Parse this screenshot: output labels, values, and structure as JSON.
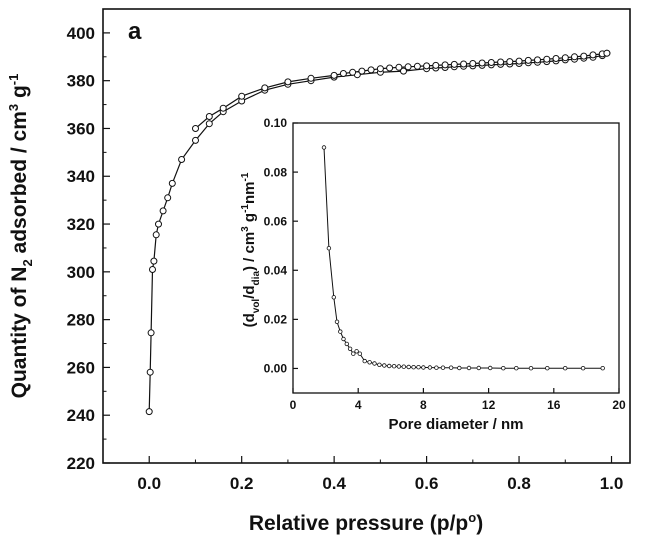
{
  "chart_data": [
    {
      "type": "scatter",
      "panel_label": "a",
      "xlabel": "Relative pressure (p/p",
      "xlabel_sup": "o",
      "xlabel_end": ")",
      "ylabel_main": "Quantity of N",
      "ylabel_sub": "2",
      "ylabel_mid": " adsorbed / cm",
      "ylabel_sup": "3",
      "ylabel_g": " g",
      "ylabel_gsup": "-1",
      "xlim": [
        -0.1,
        1.04
      ],
      "ylim": [
        220,
        410
      ],
      "xticks": [
        "0.0",
        "0.2",
        "0.4",
        "0.6",
        "0.8",
        "1.0"
      ],
      "xtick_values": [
        0.0,
        0.2,
        0.4,
        0.6,
        0.8,
        1.0
      ],
      "yticks": [
        "220",
        "240",
        "260",
        "280",
        "300",
        "320",
        "340",
        "360",
        "380",
        "400"
      ],
      "ytick_values": [
        220,
        240,
        260,
        280,
        300,
        320,
        340,
        360,
        380,
        400
      ],
      "series": [
        {
          "x": [
            0.0,
            0.002,
            0.004,
            0.007,
            0.01,
            0.015,
            0.02,
            0.03,
            0.04,
            0.05,
            0.07,
            0.1,
            0.13,
            0.16,
            0.2,
            0.25,
            0.3,
            0.35,
            0.4,
            0.45,
            0.5,
            0.55,
            0.6,
            0.62,
            0.64,
            0.66,
            0.68,
            0.7,
            0.72,
            0.74,
            0.76,
            0.78,
            0.8,
            0.82,
            0.84,
            0.86,
            0.88,
            0.9,
            0.92,
            0.94,
            0.96,
            0.98,
            0.99
          ],
          "y": [
            241.5,
            258,
            274.5,
            301,
            304.5,
            315.5,
            320,
            325.5,
            331,
            337,
            347,
            355,
            362,
            367,
            371.5,
            376,
            378.5,
            380,
            381.5,
            382.5,
            383.5,
            384,
            385,
            385.3,
            385.5,
            385.8,
            386,
            386.2,
            386.4,
            386.6,
            386.8,
            387,
            387.2,
            387.5,
            387.7,
            388,
            388.3,
            388.7,
            389,
            389.4,
            389.8,
            390.5,
            391.5
          ]
        },
        {
          "x": [
            0.1,
            0.13,
            0.16,
            0.2,
            0.25,
            0.3,
            0.35,
            0.4,
            0.42,
            0.44,
            0.46,
            0.48,
            0.5,
            0.52,
            0.54,
            0.56,
            0.58,
            0.6,
            0.62,
            0.64,
            0.66,
            0.68,
            0.7,
            0.72,
            0.74,
            0.76,
            0.78,
            0.8,
            0.82,
            0.84,
            0.86,
            0.88,
            0.9,
            0.92,
            0.94,
            0.96,
            0.98,
            0.99
          ],
          "y": [
            360,
            365,
            368.5,
            373.5,
            377,
            379.5,
            381,
            382.2,
            383,
            383.5,
            384,
            384.5,
            385,
            385.3,
            385.6,
            385.8,
            386,
            386.2,
            386.4,
            386.6,
            386.8,
            387,
            387.2,
            387.4,
            387.6,
            387.8,
            388,
            388.2,
            388.5,
            388.7,
            389,
            389.3,
            389.6,
            390,
            390.3,
            390.8,
            391.2,
            391.5
          ]
        }
      ]
    },
    {
      "type": "line",
      "xlabel": "Pore diameter / nm",
      "ylabel_lp": "(d",
      "ylabel_vol": "vol",
      "ylabel_slash": "/d",
      "ylabel_dia": "dia",
      "ylabel_rest": ") / cm",
      "ylabel_sup3": "3",
      "ylabel_g": " g",
      "ylabel_gsup": "-1",
      "ylabel_nm": "nm",
      "ylabel_nmsup": "-1",
      "xlim": [
        0,
        20
      ],
      "ylim": [
        -0.01,
        0.1
      ],
      "xticks": [
        "0",
        "4",
        "8",
        "12",
        "16",
        "20"
      ],
      "xtick_values": [
        0,
        4,
        8,
        12,
        16,
        20
      ],
      "yticks": [
        "0.00",
        "0.02",
        "0.04",
        "0.06",
        "0.08",
        "0.10"
      ],
      "ytick_values": [
        0.0,
        0.02,
        0.04,
        0.06,
        0.08,
        0.1
      ],
      "series": [
        {
          "x": [
            1.9,
            2.2,
            2.5,
            2.7,
            2.9,
            3.1,
            3.3,
            3.5,
            3.7,
            3.9,
            4.1,
            4.4,
            4.7,
            5.0,
            5.3,
            5.6,
            5.9,
            6.2,
            6.5,
            6.8,
            7.1,
            7.4,
            7.7,
            8.0,
            8.4,
            8.8,
            9.2,
            9.7,
            10.2,
            10.8,
            11.4,
            12.1,
            12.9,
            13.7,
            14.6,
            15.6,
            16.7,
            17.8,
            19.0
          ],
          "y": [
            0.09,
            0.049,
            0.029,
            0.019,
            0.015,
            0.012,
            0.01,
            0.008,
            0.006,
            0.007,
            0.006,
            0.003,
            0.0025,
            0.002,
            0.0015,
            0.0012,
            0.001,
            0.0009,
            0.0008,
            0.0007,
            0.0006,
            0.0005,
            0.0005,
            0.0004,
            0.0004,
            0.0003,
            0.0003,
            0.0003,
            0.0002,
            0.0002,
            0.0002,
            0.0002,
            0.0001,
            0.0001,
            0.0001,
            0.0001,
            0.0001,
            0.0001,
            0.0001
          ]
        }
      ]
    }
  ]
}
